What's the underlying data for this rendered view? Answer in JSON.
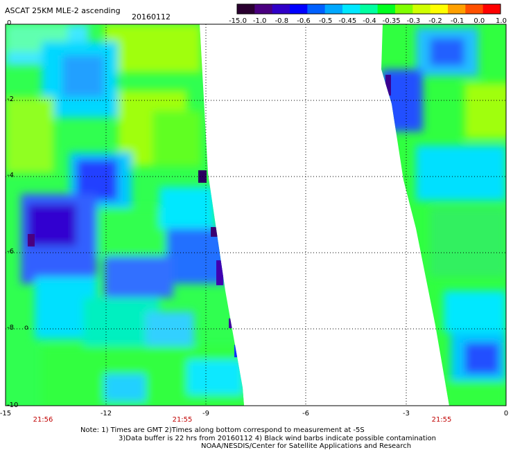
{
  "header": {
    "title": "ASCAT 25KM MLE-2 ascending",
    "date": "20160112"
  },
  "colorbar": {
    "labels": [
      "-15.0",
      "-1.0",
      "-0.8",
      "-0.6",
      "-0.5",
      "-0.45",
      "-0.4",
      "-0.35",
      "-0.3",
      "-0.2",
      "-0.1",
      "0.0",
      "1.0"
    ],
    "colors": [
      "#2a0030",
      "#4a0080",
      "#3000c8",
      "#0000ff",
      "#0060ff",
      "#00a8ff",
      "#00e8ff",
      "#00ffa0",
      "#00ff20",
      "#80ff00",
      "#d0ff00",
      "#ffff00",
      "#ffa000",
      "#ff5000",
      "#ff0000"
    ]
  },
  "map": {
    "x_ticks": [
      "-15",
      "-12",
      "-9",
      "-6",
      "-3",
      "0"
    ],
    "y_ticks": [
      "0",
      "-2",
      "-4",
      "-6",
      "-8",
      "-10"
    ],
    "times": [
      "21:56",
      "21:55",
      "21:55"
    ],
    "side_mark": "o"
  },
  "notes": {
    "line1": "Note: 1) Times are GMT 2)Times along bottom correspond to measurement at -5S",
    "line2": "3)Data buffer is 22 hrs from 20160112 4) Black wind barbs indicate possible contamination",
    "line3": "NOAA/NESDIS/Center for Satellite Applications and Research"
  }
}
